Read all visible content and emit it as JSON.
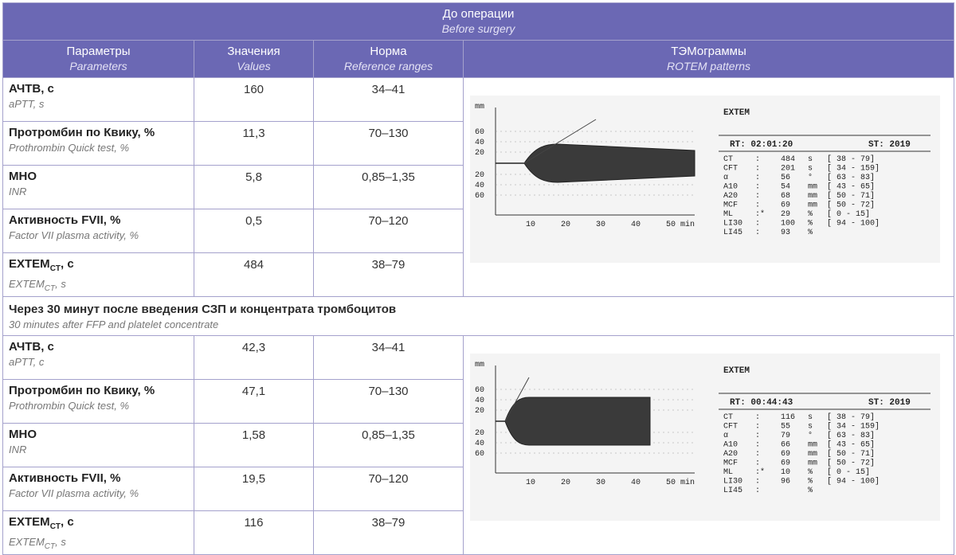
{
  "before": {
    "band_ru": "До операции",
    "band_en": "Before surgery"
  },
  "columns": [
    {
      "ru": "Параметры",
      "en": "Parameters"
    },
    {
      "ru": "Значения",
      "en": "Values"
    },
    {
      "ru": "Норма",
      "en": "Reference ranges"
    },
    {
      "ru": "ТЭМограммы",
      "en": "ROTEM patterns"
    }
  ],
  "before_rows": [
    {
      "ru": "АЧТВ, с",
      "en": "aPTT, s",
      "value": "160",
      "range": "34–41"
    },
    {
      "ru": "Протромбин по Квику, %",
      "en": "Prothrombin Quick test, %",
      "value": "11,3",
      "range": "70–130"
    },
    {
      "ru": "МНО",
      "en": "INR",
      "value": "5,8",
      "range": "0,85–1,35"
    },
    {
      "ru": "Активность FVII, %",
      "en": "Factor VII plasma activity, %",
      "value": "0,5",
      "range": "70–120"
    },
    {
      "ru": "EXTEM",
      "ru_sub": "CT",
      "ru_tail": ", с",
      "en": "EXTEM",
      "en_sub": "CT",
      "en_tail": ", s",
      "value": "484",
      "range": "38–79"
    }
  ],
  "after": {
    "ru": "Через 30 минут после введения СЗП и концентрата тромбоцитов",
    "en": "30 minutes after FFP and platelet concentrate"
  },
  "after_rows": [
    {
      "ru": "АЧТВ, с",
      "en": "aPTT, c",
      "value": "42,3",
      "range": "34–41"
    },
    {
      "ru": "Протромбин по Квику, %",
      "en": "Prothrombin Quick test, %",
      "value": "47,1",
      "range": "70–130"
    },
    {
      "ru": "МНО",
      "en": "INR",
      "value": "1,58",
      "range": "0,85–1,35"
    },
    {
      "ru": "Активность FVII, %",
      "en": "Factor VII plasma activity, %",
      "value": "19,5",
      "range": "70–120"
    },
    {
      "ru": "EXTEM",
      "ru_sub": "CT",
      "ru_tail": ", с",
      "en": "EXTEM",
      "en_sub": "CT",
      "en_tail": ", s",
      "value": "116",
      "range": "38–79"
    }
  ],
  "rotem_before": {
    "title": "EXTEM",
    "rt_label": "RT:",
    "rt": "02:01:20",
    "st_label": "ST:",
    "st": "2019",
    "axis_unit": "mm",
    "y_ticks": [
      "60",
      "40",
      "20",
      "20",
      "40",
      "60"
    ],
    "x_ticks": [
      "10",
      "20",
      "30",
      "40",
      "50 min"
    ],
    "params": [
      {
        "name": "CT",
        "sep": ":",
        "value": "484",
        "unit": "s",
        "range": "[ 38 - 79]"
      },
      {
        "name": "CFT",
        "sep": ":",
        "value": "201",
        "unit": "s",
        "range": "[ 34 - 159]"
      },
      {
        "name": "α",
        "sep": ":",
        "value": "56",
        "unit": "°",
        "range": "[ 63 - 83]"
      },
      {
        "name": "A10",
        "sep": ":",
        "value": "54",
        "unit": "mm",
        "range": "[ 43 - 65]"
      },
      {
        "name": "A20",
        "sep": ":",
        "value": "68",
        "unit": "mm",
        "range": "[ 50 - 71]"
      },
      {
        "name": "MCF",
        "sep": ":",
        "value": "69",
        "unit": "mm",
        "range": "[ 50 - 72]"
      },
      {
        "name": "ML",
        "sep": ":*",
        "value": "29",
        "unit": "%",
        "range": "[ 0 - 15]"
      },
      {
        "name": "LI30",
        "sep": ":",
        "value": "100",
        "unit": "%",
        "range": "[ 94 - 100]"
      },
      {
        "name": "LI45",
        "sep": ":",
        "value": "93",
        "unit": "%",
        "range": ""
      }
    ]
  },
  "rotem_after": {
    "title": "EXTEM",
    "rt_label": "RT:",
    "rt": "00:44:43",
    "st_label": "ST:",
    "st": "2019",
    "axis_unit": "mm",
    "y_ticks": [
      "60",
      "40",
      "20",
      "20",
      "40",
      "60"
    ],
    "x_ticks": [
      "10",
      "20",
      "30",
      "40",
      "50 min"
    ],
    "params": [
      {
        "name": "CT",
        "sep": ":",
        "value": "116",
        "unit": "s",
        "range": "[ 38 - 79]"
      },
      {
        "name": "CFT",
        "sep": ":",
        "value": "55",
        "unit": "s",
        "range": "[ 34 - 159]"
      },
      {
        "name": "α",
        "sep": ":",
        "value": "79",
        "unit": "°",
        "range": "[ 63 - 83]"
      },
      {
        "name": "A10",
        "sep": ":",
        "value": "66",
        "unit": "mm",
        "range": "[ 43 - 65]"
      },
      {
        "name": "A20",
        "sep": ":",
        "value": "69",
        "unit": "mm",
        "range": "[ 50 - 71]"
      },
      {
        "name": "MCF",
        "sep": ":",
        "value": "69",
        "unit": "mm",
        "range": "[ 50 - 72]"
      },
      {
        "name": "ML",
        "sep": ":*",
        "value": "10",
        "unit": "%",
        "range": "[ 0 - 15]"
      },
      {
        "name": "LI30",
        "sep": ":",
        "value": "96",
        "unit": "%",
        "range": "[ 94 - 100]"
      },
      {
        "name": "LI45",
        "sep": ":",
        "value": "",
        "unit": "%",
        "range": ""
      }
    ]
  }
}
